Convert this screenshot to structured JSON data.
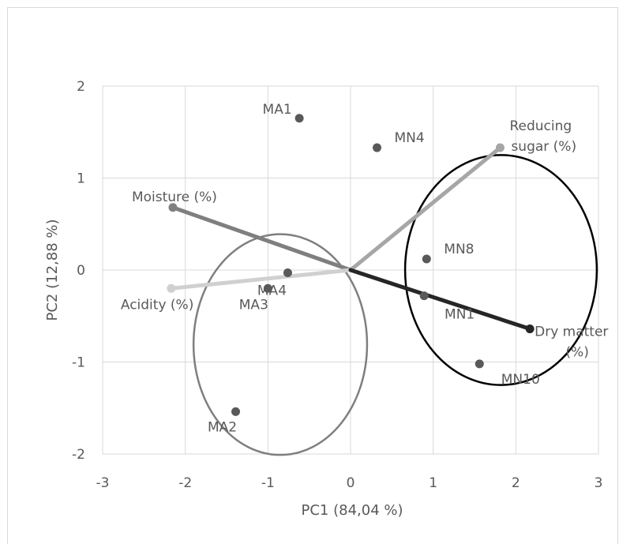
{
  "chart_data": {
    "type": "scatter",
    "xlabel": "PC1 (84,04 %)",
    "ylabel": "PC2  (12,88 %)",
    "xlim": [
      -3,
      3
    ],
    "ylim": [
      -2,
      2
    ],
    "x_ticks": [
      "-3",
      "-2",
      "-1",
      "0",
      "1",
      "2",
      "3"
    ],
    "y_ticks": [
      "2",
      "1",
      "0",
      "-1",
      "-2"
    ],
    "grid": true,
    "points": [
      {
        "label": "MA1",
        "x": -0.62,
        "y": 1.65
      },
      {
        "label": "MN4",
        "x": 0.32,
        "y": 1.33
      },
      {
        "label": "MN8",
        "x": 0.92,
        "y": 0.12
      },
      {
        "label": "MA4",
        "x": -0.76,
        "y": -0.03
      },
      {
        "label": "MA3",
        "x": -1.0,
        "y": -0.2
      },
      {
        "label": "MN1",
        "x": 0.89,
        "y": -0.28
      },
      {
        "label": "MN10",
        "x": 1.56,
        "y": -1.02
      },
      {
        "label": "MA2",
        "x": -1.39,
        "y": -1.54
      }
    ],
    "vectors": [
      {
        "label": "Reducing sugar (%)",
        "label_lines": [
          "Reducing",
          "sugar (%)"
        ],
        "x": 1.81,
        "y": 1.33,
        "color": "#a6a6a6"
      },
      {
        "label": "Moisture (%)",
        "label_lines": [
          "Moisture (%)"
        ],
        "x": -2.15,
        "y": 0.68,
        "color": "#7f7f7f"
      },
      {
        "label": "Acidity (%)",
        "label_lines": [
          "Acidity (%)"
        ],
        "x": -2.17,
        "y": -0.2,
        "color": "#d0d0d0"
      },
      {
        "label": "Dry matter (%)",
        "label_lines": [
          "Dry matter",
          "(%)"
        ],
        "x": 2.17,
        "y": -0.64,
        "color": "#262626"
      }
    ],
    "ellipses": [
      {
        "cx": -0.85,
        "cy": -0.81,
        "rx": 1.05,
        "ry": 1.2,
        "color": "#7f7f7f"
      },
      {
        "cx": 1.82,
        "cy": 0.0,
        "rx": 1.16,
        "ry": 1.25,
        "color": "#000000"
      }
    ],
    "colors": {
      "point": "#595959",
      "grid": "#d9d9d9",
      "text": "#595959"
    }
  }
}
